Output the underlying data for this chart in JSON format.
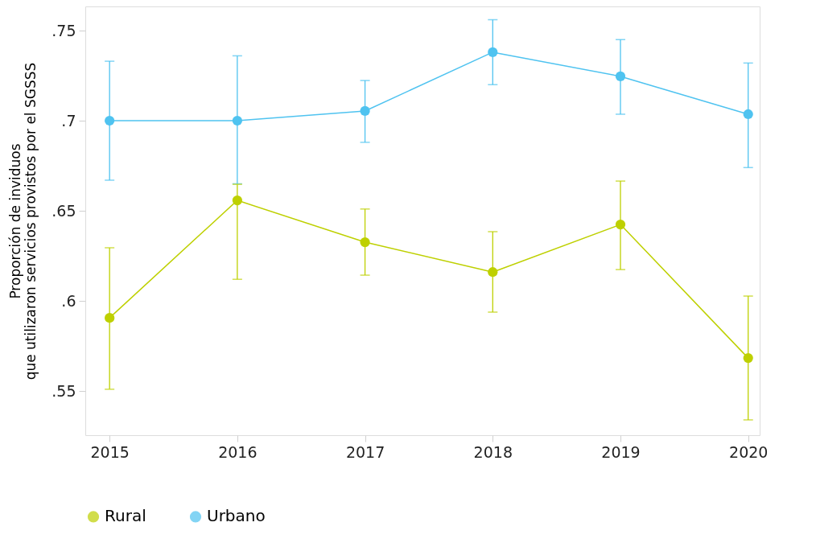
{
  "chart_data": {
    "type": "line",
    "ylabel": "Proporción de inviduos\nque utilizaron servicios provistos por el SGSSS",
    "x": [
      2015,
      2016,
      2017,
      2018,
      2019,
      2020
    ],
    "series": [
      {
        "name": "Rural",
        "color": "#bed000",
        "values": [
          0.5906,
          0.6558,
          0.6326,
          0.616,
          0.6424,
          0.5683
        ],
        "errors": [
          [
            0.551,
            0.6295
          ],
          [
            0.612,
            0.6647
          ],
          [
            0.6143,
            0.651
          ],
          [
            0.5938,
            0.6384
          ],
          [
            0.6174,
            0.6665
          ],
          [
            0.534,
            0.6027
          ]
        ]
      },
      {
        "name": "Urbano",
        "color": "#4fc3f0",
        "values": [
          0.7,
          0.7,
          0.7054,
          0.738,
          0.7246,
          0.7036
        ],
        "errors": [
          [
            0.667,
            0.733
          ],
          [
            0.665,
            0.736
          ],
          [
            0.688,
            0.7223
          ],
          [
            0.72,
            0.756
          ],
          [
            0.7036,
            0.745
          ],
          [
            0.674,
            0.732
          ]
        ]
      }
    ],
    "xlim": [
      2014.81,
      2020.09
    ],
    "xticks": [
      2015,
      2016,
      2017,
      2018,
      2019,
      2020
    ],
    "ylim": [
      0.5255,
      0.7634
    ],
    "yticks": [
      {
        "value": 0.55,
        "label": ".55"
      },
      {
        "value": 0.6,
        "label": ".6"
      },
      {
        "value": 0.65,
        "label": ".65"
      },
      {
        "value": 0.7,
        "label": ".7"
      },
      {
        "value": 0.75,
        "label": ".75"
      }
    ],
    "marker": "circle",
    "legend": "bottom",
    "grid": false
  }
}
